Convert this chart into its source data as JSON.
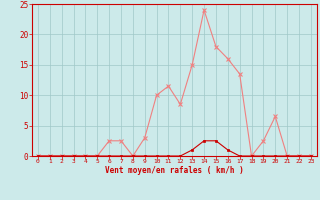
{
  "x": [
    0,
    1,
    2,
    3,
    4,
    5,
    6,
    7,
    8,
    9,
    10,
    11,
    12,
    13,
    14,
    15,
    16,
    17,
    18,
    19,
    20,
    21,
    22,
    23
  ],
  "y_rafales": [
    0,
    0,
    0,
    0,
    0,
    0,
    2.5,
    2.5,
    0,
    3,
    10,
    11.5,
    8.5,
    15,
    24,
    18,
    16,
    13.5,
    0,
    2.5,
    6.5,
    0,
    0,
    0
  ],
  "y_moyen": [
    0,
    0,
    0,
    0,
    0,
    0,
    0,
    0,
    0,
    0,
    0,
    0,
    0,
    1,
    2.5,
    2.5,
    1,
    0,
    0,
    0,
    0,
    0,
    0,
    0
  ],
  "xlabel": "Vent moyen/en rafales ( km/h )",
  "xlim": [
    -0.5,
    23.5
  ],
  "ylim": [
    0,
    25
  ],
  "yticks": [
    0,
    5,
    10,
    15,
    20,
    25
  ],
  "xticks": [
    0,
    1,
    2,
    3,
    4,
    5,
    6,
    7,
    8,
    9,
    10,
    11,
    12,
    13,
    14,
    15,
    16,
    17,
    18,
    19,
    20,
    21,
    22,
    23
  ],
  "bg_color": "#cceaea",
  "grid_color": "#a0c8c8",
  "line_color_rafales": "#f08080",
  "line_color_moyen": "#cc0000",
  "marker_color_rafales": "#f08080",
  "marker_color_moyen": "#cc0000",
  "spine_color": "#cc0000",
  "tick_color": "#cc0000",
  "label_color": "#cc0000"
}
